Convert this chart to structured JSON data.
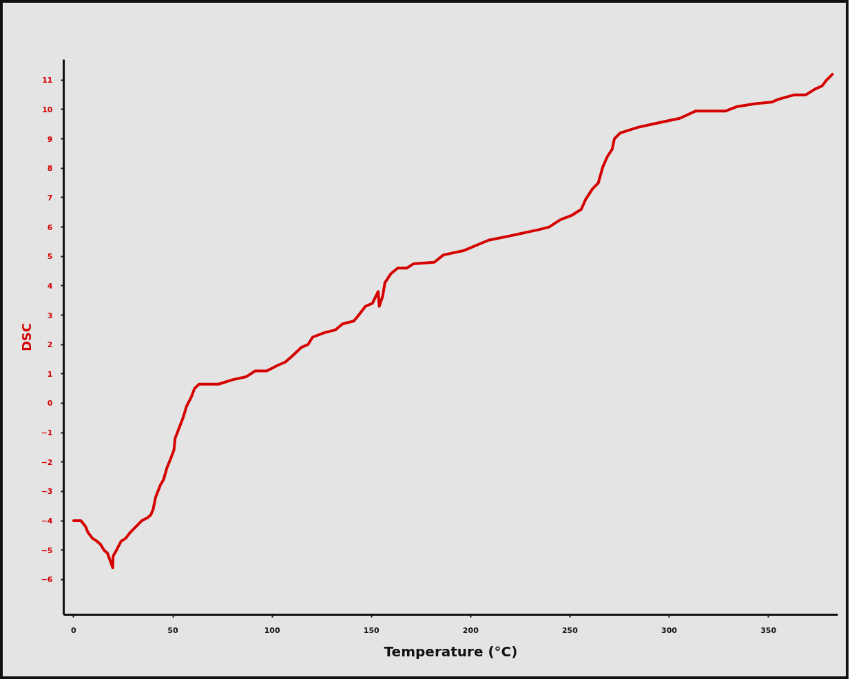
{
  "chart_data": {
    "type": "line",
    "xlabel": "Temperature (°C)",
    "ylabel": "DSC",
    "xlim": [
      -5,
      385
    ],
    "ylim": [
      -7.2,
      11.7
    ],
    "xticks": [
      0,
      50,
      100,
      150,
      200,
      250,
      300,
      350
    ],
    "yticks": [
      -6,
      -5,
      -4,
      -3,
      -2,
      -1,
      0,
      1,
      2,
      3,
      4,
      5,
      6,
      7,
      8,
      9,
      10,
      11
    ],
    "line_style": "solid",
    "marker": "none",
    "series": [
      {
        "color": "#d40000",
        "x": [
          0,
          2,
          3.7,
          6,
          7.2,
          9.5,
          11.8,
          13.5,
          15.3,
          17,
          18.1,
          19.7,
          19.9,
          21.6,
          23.9,
          26.2,
          28.5,
          31.4,
          34.3,
          37.2,
          38.9,
          40.1,
          41.3,
          43.6,
          45.3,
          47,
          48.8,
          50.5,
          51.1,
          53.4,
          55.1,
          56.9,
          59.2,
          60.9,
          63.2,
          73,
          80,
          86.9,
          91.5,
          97.3,
          103.1,
          106.6,
          110,
          114.7,
          118.1,
          120.4,
          126.2,
          132,
          135.5,
          141.2,
          143.6,
          147,
          150.5,
          153.4,
          154,
          155.7,
          156.8,
          159.7,
          163.2,
          167.8,
          171.3,
          181.7,
          186.3,
          196.7,
          209,
          220,
          233.7,
          239.5,
          245.3,
          251,
          255.7,
          258,
          261.4,
          264.3,
          266.6,
          268.9,
          271.3,
          272.4,
          275.3,
          279.9,
          284.6,
          291.5,
          298.4,
          305.4,
          313.4,
          328.5,
          334.3,
          343.5,
          351.6,
          355.1,
          363.1,
          368.9,
          373.6,
          377,
          379.3,
          382.2
        ],
        "values": [
          -4.0,
          -4.0,
          -4.0,
          -4.2,
          -4.4,
          -4.6,
          -4.7,
          -4.8,
          -5.0,
          -5.1,
          -5.3,
          -5.6,
          -5.2,
          -5.0,
          -4.7,
          -4.6,
          -4.4,
          -4.2,
          -4.0,
          -3.9,
          -3.8,
          -3.6,
          -3.2,
          -2.8,
          -2.6,
          -2.2,
          -1.9,
          -1.6,
          -1.2,
          -0.8,
          -0.5,
          -0.1,
          0.2,
          0.5,
          0.65,
          0.65,
          0.8,
          0.9,
          1.1,
          1.1,
          1.3,
          1.4,
          1.6,
          1.9,
          2.0,
          2.25,
          2.4,
          2.5,
          2.7,
          2.8,
          3.0,
          3.3,
          3.4,
          3.8,
          3.3,
          3.65,
          4.1,
          4.4,
          4.6,
          4.6,
          4.75,
          4.8,
          5.05,
          5.2,
          5.55,
          5.7,
          5.9,
          6.0,
          6.25,
          6.4,
          6.6,
          6.95,
          7.3,
          7.5,
          8.05,
          8.4,
          8.65,
          9.0,
          9.2,
          9.3,
          9.4,
          9.5,
          9.6,
          9.7,
          9.95,
          9.95,
          10.1,
          10.2,
          10.25,
          10.35,
          10.5,
          10.5,
          10.7,
          10.8,
          11.0,
          11.2
        ]
      }
    ]
  }
}
